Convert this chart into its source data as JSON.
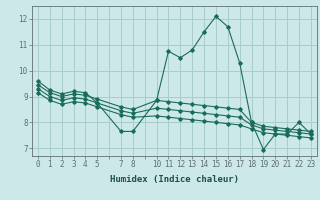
{
  "xlabel": "Humidex (Indice chaleur)",
  "ylabel": "",
  "bg_color": "#cde8e8",
  "grid_color": "#a8cccc",
  "line_color": "#1a6b5a",
  "marker_color": "#1a6b5a",
  "lines": [
    {
      "x": [
        0,
        1,
        2,
        3,
        4,
        5,
        7,
        8,
        10,
        11,
        12,
        13,
        14,
        15,
        16,
        17,
        18,
        19,
        20,
        21,
        22,
        23
      ],
      "y": [
        9.6,
        9.25,
        9.1,
        9.2,
        9.15,
        8.75,
        7.65,
        7.65,
        8.85,
        10.75,
        10.5,
        10.8,
        11.5,
        12.1,
        11.7,
        10.3,
        8.0,
        6.95,
        7.55,
        7.55,
        8.0,
        7.55
      ]
    },
    {
      "x": [
        0,
        1,
        2,
        3,
        4,
        5,
        7,
        8,
        10,
        11,
        12,
        13,
        14,
        15,
        16,
        17,
        18,
        19,
        20,
        21,
        22,
        23
      ],
      "y": [
        9.45,
        9.15,
        9.0,
        9.1,
        9.05,
        8.9,
        8.6,
        8.5,
        8.85,
        8.8,
        8.75,
        8.7,
        8.65,
        8.6,
        8.55,
        8.5,
        8.0,
        7.85,
        7.8,
        7.75,
        7.7,
        7.65
      ]
    },
    {
      "x": [
        0,
        1,
        2,
        3,
        4,
        5,
        7,
        8,
        10,
        11,
        12,
        13,
        14,
        15,
        16,
        17,
        18,
        19,
        20,
        21,
        22,
        23
      ],
      "y": [
        9.3,
        9.0,
        8.85,
        8.95,
        8.9,
        8.75,
        8.45,
        8.35,
        8.55,
        8.5,
        8.45,
        8.4,
        8.35,
        8.3,
        8.25,
        8.2,
        7.9,
        7.75,
        7.7,
        7.65,
        7.6,
        7.55
      ]
    },
    {
      "x": [
        0,
        1,
        2,
        3,
        4,
        5,
        7,
        8,
        10,
        11,
        12,
        13,
        14,
        15,
        16,
        17,
        18,
        19,
        20,
        21,
        22,
        23
      ],
      "y": [
        9.15,
        8.85,
        8.7,
        8.8,
        8.75,
        8.6,
        8.3,
        8.2,
        8.25,
        8.2,
        8.15,
        8.1,
        8.05,
        8.0,
        7.95,
        7.9,
        7.75,
        7.6,
        7.55,
        7.5,
        7.45,
        7.4
      ]
    }
  ],
  "xtick_labels": [
    "0",
    "1",
    "2",
    "3",
    "4",
    "5",
    "",
    "7",
    "8",
    "",
    "10",
    "11",
    "12",
    "13",
    "14",
    "15",
    "16",
    "17",
    "18",
    "19",
    "20",
    "21",
    "22",
    "23"
  ],
  "xtick_vals": [
    0,
    1,
    2,
    3,
    4,
    5,
    6,
    7,
    8,
    9,
    10,
    11,
    12,
    13,
    14,
    15,
    16,
    17,
    18,
    19,
    20,
    21,
    22,
    23
  ],
  "ylim": [
    6.7,
    12.5
  ],
  "xlim": [
    -0.5,
    23.5
  ],
  "ytick_vals": [
    7,
    8,
    9,
    10,
    11,
    12
  ],
  "axis_fontsize": 6.5,
  "tick_fontsize": 5.5
}
